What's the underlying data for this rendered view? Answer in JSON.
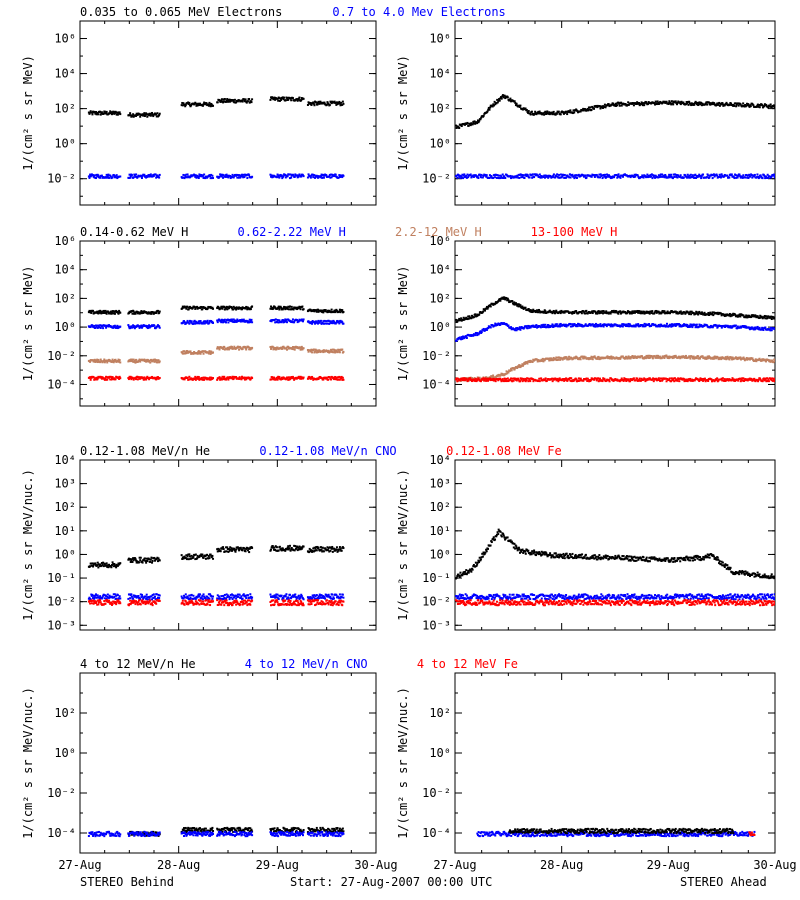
{
  "footer": {
    "left": "STEREO Behind",
    "center": "Start: 27-Aug-2007 00:00 UTC",
    "right": "STEREO Ahead"
  },
  "colors": {
    "black": "#000000",
    "blue": "#0000ff",
    "tan": "#c08060",
    "red": "#ff0000"
  },
  "chart_data": [
    {
      "type": "scatter",
      "row": 0,
      "column": "left",
      "title_items": [
        {
          "text": "0.035 to 0.065 MeV Electrons",
          "color": "#000000"
        },
        {
          "text": "0.7 to 4.0 Mev Electrons",
          "color": "#0000ff"
        }
      ],
      "ylabel": "1/(cm² s sr MeV)",
      "yscale": "log",
      "ylim_exp": [
        -3.5,
        7
      ],
      "ytick_exps": [
        -2,
        0,
        2,
        4,
        6
      ],
      "ytick_labels": [
        "10⁻²",
        "10⁰",
        "10²",
        "10⁴",
        "10⁶"
      ],
      "xlim_days": [
        0,
        3
      ],
      "xtick_labels": [],
      "series": [
        {
          "color": "#000000",
          "segments": [
            [
              0.08,
              0.4,
              1.8
            ],
            [
              0.48,
              0.8,
              1.7
            ],
            [
              1.02,
              1.34,
              2.3
            ],
            [
              1.38,
              1.74,
              2.5
            ],
            [
              1.92,
              2.26,
              2.6
            ],
            [
              2.3,
              2.66,
              2.35
            ]
          ]
        },
        {
          "color": "#0000ff",
          "segments": [
            [
              0.08,
              0.4,
              -1.8
            ],
            [
              0.48,
              0.8,
              -1.8
            ],
            [
              1.02,
              1.34,
              -1.8
            ],
            [
              1.38,
              1.74,
              -1.8
            ],
            [
              1.92,
              2.26,
              -1.8
            ],
            [
              2.3,
              2.66,
              -1.8
            ]
          ]
        }
      ]
    },
    {
      "type": "scatter",
      "row": 0,
      "column": "right",
      "title_items": [],
      "ylabel": "1/(cm² s sr MeV)",
      "yscale": "log",
      "ylim_exp": [
        -3.5,
        7
      ],
      "ytick_exps": [
        -2,
        0,
        2,
        4,
        6
      ],
      "ytick_labels": [
        "10⁻²",
        "10⁰",
        "10²",
        "10⁴",
        "10⁶"
      ],
      "xlim_days": [
        0,
        3
      ],
      "xtick_labels": [],
      "series": [
        {
          "color": "#000000",
          "curve": [
            [
              0,
              1
            ],
            [
              0.2,
              1.3
            ],
            [
              0.35,
              2.3
            ],
            [
              0.45,
              2.8
            ],
            [
              0.55,
              2.4
            ],
            [
              0.7,
              1.8
            ],
            [
              1.0,
              1.8
            ],
            [
              1.5,
              2.3
            ],
            [
              2.0,
              2.4
            ],
            [
              2.5,
              2.3
            ],
            [
              3.0,
              2.2
            ]
          ]
        },
        {
          "color": "#0000ff",
          "segments": [
            [
              0,
              3,
              -1.8
            ]
          ]
        }
      ]
    },
    {
      "type": "scatter",
      "row": 1,
      "column": "left",
      "title_items": [
        {
          "text": "0.14-0.62 MeV H",
          "color": "#000000"
        },
        {
          "text": "0.62-2.22 MeV H",
          "color": "#0000ff"
        },
        {
          "text": "2.2-12 MeV H",
          "color": "#c08060"
        },
        {
          "text": "13-100 MeV H",
          "color": "#ff0000"
        }
      ],
      "ylabel": "1/(cm² s sr MeV)",
      "yscale": "log",
      "ylim_exp": [
        -5.5,
        6
      ],
      "ytick_exps": [
        -4,
        -2,
        0,
        2,
        4,
        6
      ],
      "ytick_labels": [
        "10⁻⁴",
        "10⁻²",
        "10⁰",
        "10²",
        "10⁴",
        "10⁶"
      ],
      "xlim_days": [
        0,
        3
      ],
      "xtick_labels": [],
      "series": [
        {
          "color": "#000000",
          "segments": [
            [
              0.08,
              0.4,
              1.1
            ],
            [
              0.48,
              0.8,
              1.1
            ],
            [
              1.02,
              1.34,
              1.4
            ],
            [
              1.38,
              1.74,
              1.4
            ],
            [
              1.92,
              2.26,
              1.4
            ],
            [
              2.3,
              2.66,
              1.2
            ]
          ]
        },
        {
          "color": "#0000ff",
          "segments": [
            [
              0.08,
              0.4,
              0.1
            ],
            [
              0.48,
              0.8,
              0.1
            ],
            [
              1.02,
              1.34,
              0.4
            ],
            [
              1.38,
              1.74,
              0.5
            ],
            [
              1.92,
              2.26,
              0.5
            ],
            [
              2.3,
              2.66,
              0.4
            ]
          ]
        },
        {
          "color": "#c08060",
          "segments": [
            [
              0.08,
              0.4,
              -2.3
            ],
            [
              0.48,
              0.8,
              -2.3
            ],
            [
              1.02,
              1.34,
              -1.7
            ],
            [
              1.38,
              1.74,
              -1.4
            ],
            [
              1.92,
              2.26,
              -1.4
            ],
            [
              2.3,
              2.66,
              -1.6
            ]
          ]
        },
        {
          "color": "#ff0000",
          "segments": [
            [
              0.08,
              0.4,
              -3.5
            ],
            [
              0.48,
              0.8,
              -3.5
            ],
            [
              1.02,
              1.34,
              -3.5
            ],
            [
              1.38,
              1.74,
              -3.5
            ],
            [
              1.92,
              2.26,
              -3.5
            ],
            [
              2.3,
              2.66,
              -3.5
            ]
          ]
        }
      ]
    },
    {
      "type": "scatter",
      "row": 1,
      "column": "right",
      "title_items": [],
      "ylabel": "1/(cm² s sr MeV)",
      "yscale": "log",
      "ylim_exp": [
        -5.5,
        6
      ],
      "ytick_exps": [
        -4,
        -2,
        0,
        2,
        4,
        6
      ],
      "ytick_labels": [
        "10⁻⁴",
        "10⁻²",
        "10⁰",
        "10²",
        "10⁴",
        "10⁶"
      ],
      "xlim_days": [
        0,
        3
      ],
      "xtick_labels": [],
      "series": [
        {
          "color": "#000000",
          "curve": [
            [
              0,
              0.5
            ],
            [
              0.2,
              0.9
            ],
            [
              0.35,
              1.7
            ],
            [
              0.45,
              2.1
            ],
            [
              0.55,
              1.7
            ],
            [
              0.7,
              1.2
            ],
            [
              1.0,
              1.1
            ],
            [
              2.0,
              1.1
            ],
            [
              2.4,
              1.0
            ],
            [
              2.6,
              0.9
            ],
            [
              3.0,
              0.7
            ]
          ]
        },
        {
          "color": "#0000ff",
          "curve": [
            [
              0,
              -0.8
            ],
            [
              0.2,
              -0.4
            ],
            [
              0.35,
              0.2
            ],
            [
              0.45,
              0.3
            ],
            [
              0.55,
              -0.1
            ],
            [
              0.7,
              0.1
            ],
            [
              1.0,
              0.2
            ],
            [
              2.0,
              0.2
            ],
            [
              2.6,
              0.1
            ],
            [
              3.0,
              -0.1
            ]
          ]
        },
        {
          "color": "#c08060",
          "curve": [
            [
              0,
              -3.6
            ],
            [
              0.3,
              -3.5
            ],
            [
              0.45,
              -3.2
            ],
            [
              0.55,
              -2.8
            ],
            [
              0.7,
              -2.3
            ],
            [
              1.0,
              -2.1
            ],
            [
              2.0,
              -2.0
            ],
            [
              2.6,
              -2.1
            ],
            [
              3.0,
              -2.3
            ]
          ]
        },
        {
          "color": "#ff0000",
          "segments": [
            [
              0,
              3,
              -3.6
            ]
          ]
        }
      ]
    },
    {
      "type": "scatter",
      "row": 2,
      "column": "left",
      "title_items": [
        {
          "text": "0.12-1.08 MeV/n He",
          "color": "#000000"
        },
        {
          "text": "0.12-1.08 MeV/n CNO",
          "color": "#0000ff"
        },
        {
          "text": "0.12-1.08 MeV Fe",
          "color": "#ff0000"
        }
      ],
      "ylabel": "1/(cm² s sr MeV/nuc.)",
      "yscale": "log",
      "ylim_exp": [
        -3.2,
        4
      ],
      "ytick_exps": [
        -3,
        -2,
        -1,
        0,
        1,
        2,
        3,
        4
      ],
      "ytick_labels": [
        "10⁻³",
        "10⁻²",
        "10⁻¹",
        "10⁰",
        "10¹",
        "10²",
        "10³",
        "10⁴"
      ],
      "xlim_days": [
        0,
        3
      ],
      "xtick_labels": [],
      "series": [
        {
          "color": "#000000",
          "segments": [
            [
              0.08,
              0.4,
              -0.4
            ],
            [
              0.48,
              0.8,
              -0.2
            ],
            [
              1.02,
              1.34,
              -0.05
            ],
            [
              1.38,
              1.74,
              0.25
            ],
            [
              1.92,
              2.26,
              0.3
            ],
            [
              2.3,
              2.66,
              0.25
            ]
          ]
        },
        {
          "color": "#0000ff",
          "segments": [
            [
              0.08,
              0.4,
              -1.75
            ],
            [
              0.48,
              0.8,
              -1.75
            ],
            [
              1.02,
              1.34,
              -1.75
            ],
            [
              1.38,
              1.74,
              -1.75
            ],
            [
              1.92,
              2.26,
              -1.75
            ],
            [
              2.3,
              2.66,
              -1.75
            ]
          ]
        },
        {
          "color": "#ff0000",
          "segments": [
            [
              0.08,
              0.4,
              -2.0
            ],
            [
              0.48,
              0.8,
              -2.0
            ],
            [
              1.02,
              1.34,
              -2.0
            ],
            [
              1.38,
              1.74,
              -2.0
            ],
            [
              1.92,
              2.26,
              -2.0
            ],
            [
              2.3,
              2.66,
              -2.0
            ]
          ]
        }
      ]
    },
    {
      "type": "scatter",
      "row": 2,
      "column": "right",
      "title_items": [],
      "ylabel": "1/(cm² s sr MeV/nuc.)",
      "yscale": "log",
      "ylim_exp": [
        -3.2,
        4
      ],
      "ytick_exps": [
        -3,
        -2,
        -1,
        0,
        1,
        2,
        3,
        4
      ],
      "ytick_labels": [
        "10⁻³",
        "10⁻²",
        "10⁻¹",
        "10⁰",
        "10¹",
        "10²",
        "10³",
        "10⁴"
      ],
      "xlim_days": [
        0,
        3
      ],
      "xtick_labels": [],
      "series": [
        {
          "color": "#000000",
          "curve": [
            [
              0,
              -0.9
            ],
            [
              0.15,
              -0.6
            ],
            [
              0.3,
              0.3
            ],
            [
              0.4,
              1.0
            ],
            [
              0.5,
              0.6
            ],
            [
              0.6,
              0.2
            ],
            [
              0.9,
              0.0
            ],
            [
              1.5,
              -0.1
            ],
            [
              2.0,
              -0.2
            ],
            [
              2.3,
              -0.1
            ],
            [
              2.4,
              0.0
            ],
            [
              2.6,
              -0.7
            ],
            [
              3.0,
              -0.9
            ]
          ]
        },
        {
          "color": "#0000ff",
          "segments": [
            [
              0,
              3,
              -1.75
            ]
          ]
        },
        {
          "color": "#ff0000",
          "segments": [
            [
              0,
              3,
              -2.0
            ]
          ]
        }
      ]
    },
    {
      "type": "scatter",
      "row": 3,
      "column": "left",
      "title_items": [
        {
          "text": "4 to 12 MeV/n He",
          "color": "#000000"
        },
        {
          "text": "4 to 12 MeV/n CNO",
          "color": "#0000ff"
        },
        {
          "text": "4 to 12 MeV Fe",
          "color": "#ff0000"
        }
      ],
      "ylabel": "1/(cm² s sr MeV/nuc.)",
      "yscale": "log",
      "ylim_exp": [
        -5,
        4
      ],
      "ytick_exps": [
        -4,
        -2,
        0,
        2
      ],
      "ytick_labels": [
        "10⁻⁴",
        "10⁻²",
        "10⁰",
        "10²"
      ],
      "xlim_days": [
        0,
        3
      ],
      "xtick_labels": [
        "27-Aug",
        "28-Aug",
        "29-Aug",
        "30-Aug"
      ],
      "series": [
        {
          "color": "#000000",
          "segments": [
            [
              0.48,
              0.8,
              -4.0
            ],
            [
              1.02,
              1.34,
              -3.8
            ],
            [
              1.38,
              1.74,
              -3.8
            ],
            [
              1.92,
              2.26,
              -3.8
            ],
            [
              2.3,
              2.66,
              -3.8
            ]
          ]
        },
        {
          "color": "#0000ff",
          "segments": [
            [
              0.08,
              0.4,
              -4.0
            ],
            [
              0.48,
              0.8,
              -4.0
            ],
            [
              1.02,
              1.34,
              -4.0
            ],
            [
              1.38,
              1.74,
              -4.0
            ],
            [
              1.92,
              2.26,
              -4.0
            ],
            [
              2.3,
              2.66,
              -4.0
            ]
          ]
        }
      ]
    },
    {
      "type": "scatter",
      "row": 3,
      "column": "right",
      "title_items": [],
      "ylabel": "1/(cm² s sr MeV/nuc.)",
      "yscale": "log",
      "ylim_exp": [
        -5,
        4
      ],
      "ytick_exps": [
        -4,
        -2,
        0,
        2
      ],
      "ytick_labels": [
        "10⁻⁴",
        "10⁻²",
        "10⁰",
        "10²"
      ],
      "xlim_days": [
        0,
        3
      ],
      "xtick_labels": [
        "27-Aug",
        "28-Aug",
        "29-Aug",
        "30-Aug"
      ],
      "series": [
        {
          "color": "#0000ff",
          "segments": [
            [
              0.2,
              2.8,
              -4.0
            ]
          ]
        },
        {
          "color": "#000000",
          "segments": [
            [
              0.5,
              2.6,
              -3.85
            ]
          ]
        },
        {
          "color": "#ff0000",
          "segments": [
            [
              2.75,
              2.8,
              -4.0
            ]
          ]
        }
      ]
    }
  ]
}
